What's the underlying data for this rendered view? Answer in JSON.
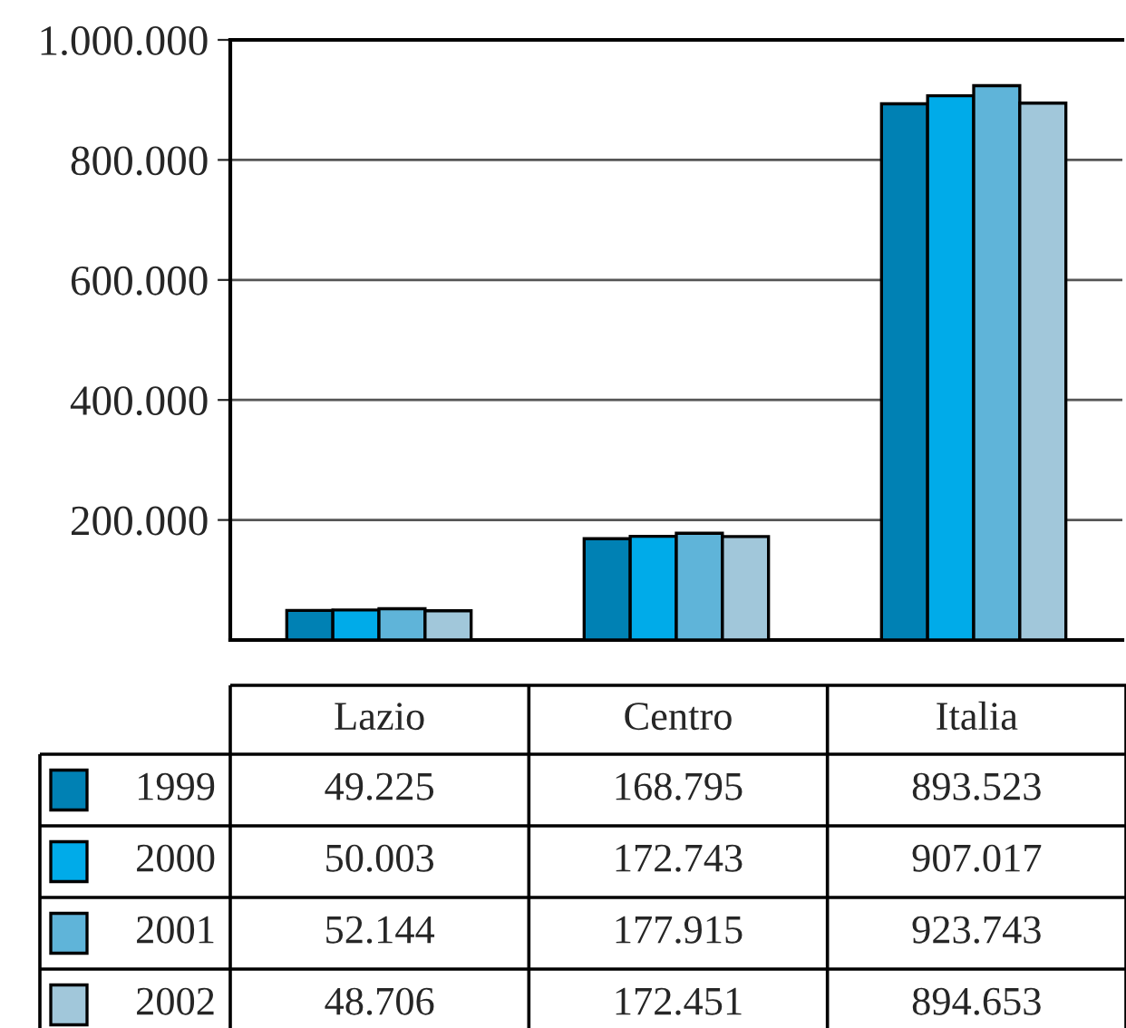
{
  "chart_data": {
    "type": "bar",
    "categories": [
      "Lazio",
      "Centro",
      "Italia"
    ],
    "series": [
      {
        "name": "1999",
        "color": "#0081b4",
        "values": [
          49225,
          168795,
          893523
        ],
        "value_labels": [
          "49.225",
          "168.795",
          "893.523"
        ]
      },
      {
        "name": "2000",
        "color": "#00abe9",
        "values": [
          50003,
          172743,
          907017
        ],
        "value_labels": [
          "50.003",
          "172.743",
          "907.017"
        ]
      },
      {
        "name": "2001",
        "color": "#5fb4d9",
        "values": [
          52144,
          177915,
          923743
        ],
        "value_labels": [
          "52.144",
          "177.915",
          "923.743"
        ]
      },
      {
        "name": "2002",
        "color": "#a1c7da",
        "values": [
          48706,
          172451,
          894653
        ],
        "value_labels": [
          "48.706",
          "172.451",
          "894.653"
        ]
      }
    ],
    "ylim": [
      0,
      1000000
    ],
    "yticks": [
      {
        "value": 200000,
        "label": "200.000"
      },
      {
        "value": 400000,
        "label": "400.000"
      },
      {
        "value": 600000,
        "label": "600.000"
      },
      {
        "value": 800000,
        "label": "800.000"
      },
      {
        "value": 1000000,
        "label": "1.000.000"
      }
    ],
    "grid": "y",
    "legend": "bottom"
  }
}
